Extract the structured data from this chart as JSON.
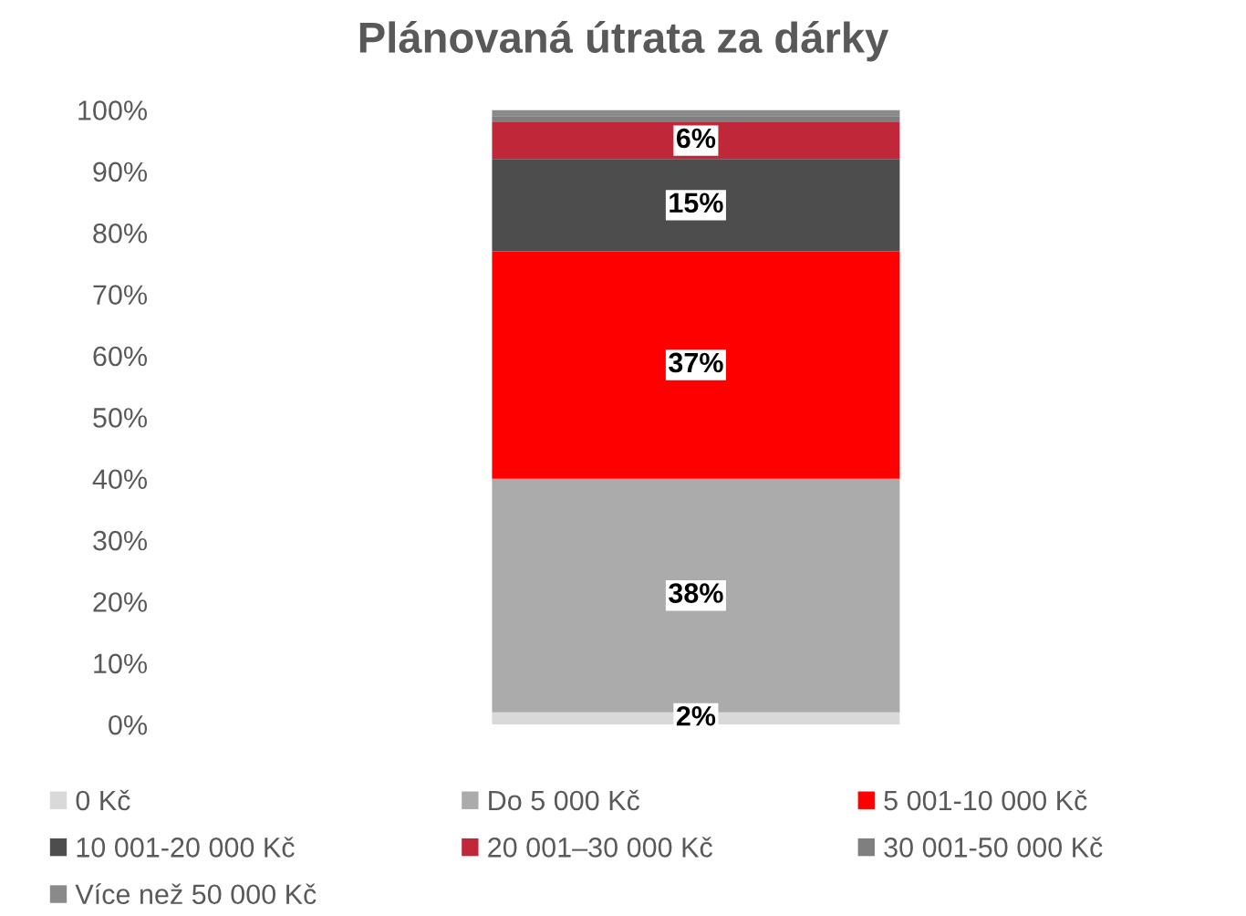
{
  "chart_data": {
    "type": "bar",
    "stacked": true,
    "title": "Plánovaná útrata za dárky",
    "categories": [
      null
    ],
    "series": [
      {
        "name": "0 Kč",
        "color": "#d9d9d9",
        "values": [
          2
        ],
        "value_labels": [
          "2%"
        ]
      },
      {
        "name": "Do 5 000 Kč",
        "color": "#ababab",
        "values": [
          38
        ],
        "value_labels": [
          "38%"
        ]
      },
      {
        "name": "5 001-10 000 Kč",
        "color": "#ff0000",
        "values": [
          37
        ],
        "value_labels": [
          "37%"
        ]
      },
      {
        "name": "10 001-20 000 Kč",
        "color": "#4d4d4d",
        "values": [
          15
        ],
        "value_labels": [
          "15%"
        ]
      },
      {
        "name": "20 001–30 000 Kč",
        "color": "#c0283a",
        "values": [
          6
        ],
        "value_labels": [
          "6%"
        ]
      },
      {
        "name": "30 001-50 000 Kč",
        "color": "#7f7f7f",
        "values": [
          1
        ],
        "value_labels": [
          null
        ]
      },
      {
        "name": "Více než 50 000 Kč",
        "color": "#8a8a8a",
        "values": [
          1
        ],
        "value_labels": [
          null
        ]
      }
    ],
    "ylim": [
      0,
      100
    ],
    "yticks": [
      {
        "value": 0,
        "label": "0%"
      },
      {
        "value": 10,
        "label": "10%"
      },
      {
        "value": 20,
        "label": "20%"
      },
      {
        "value": 30,
        "label": "30%"
      },
      {
        "value": 40,
        "label": "40%"
      },
      {
        "value": 50,
        "label": "50%"
      },
      {
        "value": 60,
        "label": "60%"
      },
      {
        "value": 70,
        "label": "70%"
      },
      {
        "value": 80,
        "label": "80%"
      },
      {
        "value": 90,
        "label": "90%"
      },
      {
        "value": 100,
        "label": "100%"
      }
    ],
    "grid": false,
    "legend": "bottom"
  }
}
